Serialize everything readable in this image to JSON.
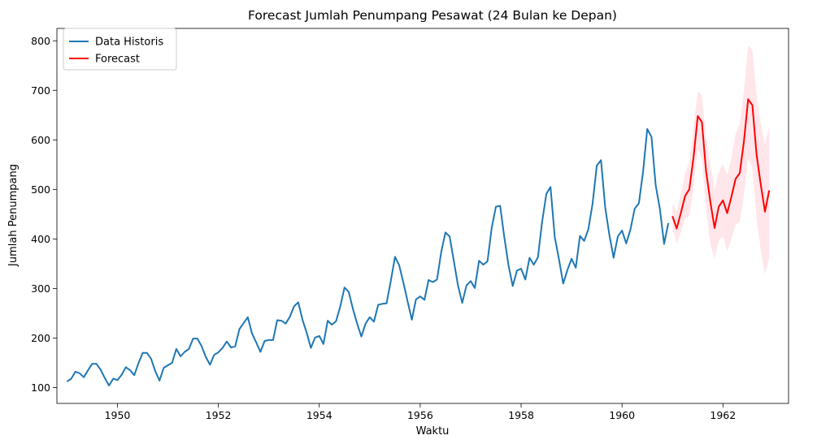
{
  "chart_data": {
    "type": "line",
    "title": "Forecast Jumlah Penumpang Pesawat (24 Bulan ke Depan)",
    "xlabel": "Waktu",
    "ylabel": "Jumlah Penumpang",
    "xlim": [
      1948.8,
      1963.3
    ],
    "ylim": [
      68,
      825
    ],
    "xticks": [
      1950,
      1952,
      1954,
      1956,
      1958,
      1960,
      1962
    ],
    "yticks": [
      100,
      200,
      300,
      400,
      500,
      600,
      700,
      800
    ],
    "legend": {
      "placement": "top-left",
      "entries": [
        "Data Historis",
        "Forecast"
      ]
    },
    "grid": false,
    "colors": {
      "historical": "#1f77b4",
      "forecast": "#ff0000",
      "interval": "#ffc0cb"
    },
    "series": [
      {
        "name": "Data Historis",
        "start": "1949-01",
        "frequency": "monthly",
        "values": [
          112,
          118,
          132,
          129,
          121,
          135,
          148,
          148,
          136,
          119,
          104,
          118,
          115,
          126,
          141,
          135,
          125,
          149,
          170,
          170,
          158,
          133,
          114,
          140,
          145,
          150,
          178,
          163,
          172,
          178,
          199,
          199,
          184,
          162,
          146,
          166,
          171,
          180,
          193,
          181,
          183,
          218,
          230,
          242,
          209,
          191,
          172,
          194,
          196,
          196,
          236,
          235,
          229,
          243,
          264,
          272,
          237,
          211,
          180,
          201,
          204,
          188,
          235,
          227,
          234,
          264,
          302,
          293,
          259,
          229,
          203,
          229,
          242,
          233,
          267,
          269,
          270,
          315,
          364,
          347,
          312,
          274,
          237,
          278,
          284,
          277,
          317,
          313,
          318,
          374,
          413,
          405,
          355,
          306,
          271,
          306,
          315,
          301,
          356,
          348,
          355,
          422,
          465,
          467,
          404,
          347,
          305,
          336,
          340,
          318,
          362,
          348,
          363,
          435,
          491,
          505,
          404,
          359,
          310,
          337,
          360,
          342,
          406,
          396,
          420,
          472,
          548,
          559,
          463,
          407,
          362,
          405,
          417,
          391,
          419,
          461,
          472,
          535,
          622,
          606,
          508,
          461,
          390,
          432
        ]
      },
      {
        "name": "Forecast",
        "start": "1961-01",
        "frequency": "monthly",
        "values": [
          446,
          421,
          453,
          487,
          500,
          564,
          648,
          636,
          536,
          475,
          422,
          465,
          478,
          452,
          485,
          521,
          533,
          598,
          682,
          670,
          570,
          509,
          455,
          498
        ],
        "lower": [
          421,
          390,
          414,
          441,
          446,
          504,
          582,
          564,
          458,
          390,
          360,
          396,
          405,
          375,
          400,
          428,
          434,
          490,
          562,
          545,
          440,
          376,
          328,
          363
        ],
        "upper": [
          471,
          455,
          492,
          533,
          555,
          625,
          698,
          690,
          605,
          548,
          500,
          535,
          551,
          528,
          565,
          612,
          632,
          700,
          790,
          782,
          690,
          630,
          590,
          628
        ]
      }
    ]
  }
}
